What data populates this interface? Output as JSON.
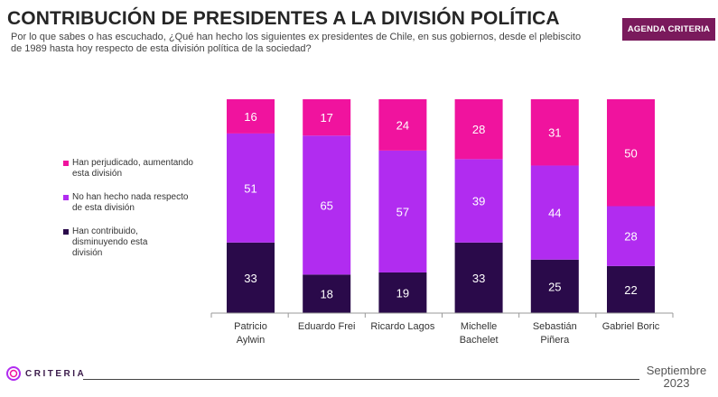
{
  "title": "CONTRIBUCIÓN DE PRESIDENTES A LA DIVISIÓN POLÍTICA",
  "subtitle": "Por lo que sabes o has escuchado, ¿Qué han hecho los siguientes ex presidentes de Chile, en sus gobiernos, desde el plebiscito de 1989 hasta hoy respecto de esta división política de la sociedad?",
  "badge": "AGENDA CRITERIA",
  "logo_text": "CRITERIA",
  "date_line1": "Septiembre",
  "date_line2": "2023",
  "colors": {
    "perjudicado": "#f0139e",
    "no_hecho": "#b12cf0",
    "contribuido": "#2a0a4a",
    "badge": "#7a1a5c"
  },
  "chart_data": {
    "type": "bar",
    "stacked": true,
    "categories": [
      "Patricio\nAylwin",
      "Eduardo Frei",
      "Ricardo Lagos",
      "Michelle\nBachelet",
      "Sebastián\nPiñera",
      "Gabriel Boric"
    ],
    "series": [
      {
        "name": "Han contribuido, disminuyendo esta división",
        "values": [
          33,
          18,
          19,
          33,
          25,
          22
        ]
      },
      {
        "name": "No han hecho nada respecto de esta división",
        "values": [
          51,
          65,
          57,
          39,
          44,
          28
        ]
      },
      {
        "name": "Han perjudicado, aumentando esta división",
        "values": [
          16,
          17,
          24,
          28,
          31,
          50
        ]
      }
    ],
    "ylim": [
      0,
      100
    ]
  },
  "legend": [
    {
      "label": "Han perjudicado, aumentando esta división",
      "color": "#f0139e"
    },
    {
      "label": "No han hecho nada respecto de esta división",
      "color": "#b12cf0"
    },
    {
      "label": "Han contribuido, disminuyendo esta división",
      "color": "#2a0a4a"
    }
  ]
}
